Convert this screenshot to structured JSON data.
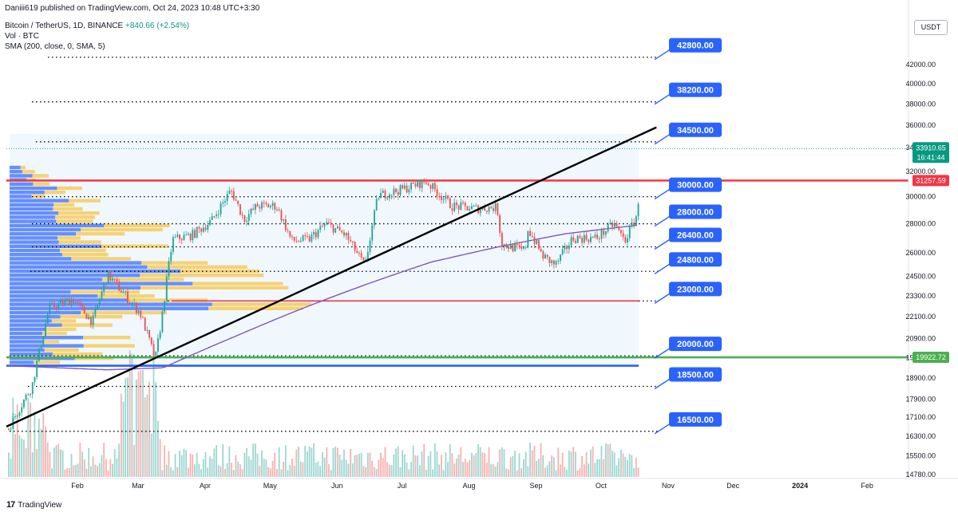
{
  "header": {
    "published": "Daniii619 published on TradingView.com, Oct 24, 2023 10:48 UTC+3:30",
    "symbol_line": "Bitcoin / TetherUS, 1D, BINANCE",
    "change": "+840.66 (+2.54%)",
    "volume_line": "Vol · BTC",
    "sma_line": "SMA (200, close, 0, SMA, 5)"
  },
  "currency": "USDT",
  "footer": {
    "brand": "TradingView",
    "logo_mark": "17"
  },
  "colors": {
    "up": "#26a69a",
    "down": "#ef5350",
    "sma": "#7e57c2",
    "label_blue": "#2962ff",
    "resistance_red": "#f23645",
    "support_green": "#4caf50",
    "trend_line": "#000000",
    "price_tag": "#089981"
  },
  "chart_data": {
    "type": "candlestick",
    "title": "Bitcoin / TetherUS, 1D, BINANCE",
    "x_ticks": [
      "Feb",
      "Mar",
      "Apr",
      "May",
      "Jun",
      "Jul",
      "Aug",
      "Sep",
      "Oct",
      "Nov",
      "Dec",
      "2024",
      "Feb"
    ],
    "y_ticks": [
      42000,
      40000,
      38000,
      36000,
      34000,
      32000,
      30000,
      28000,
      26000,
      24500,
      23300,
      22100,
      20900,
      19900,
      18900,
      17900,
      17100,
      16300,
      15500,
      14780
    ],
    "y_tick_labels": [
      "42000.00",
      "40000.00",
      "38000.00",
      "36000.00",
      "34000.00",
      "32000.00",
      "30000.00",
      "28000.00",
      "26000.00",
      "24500.00",
      "23300.00",
      "22100.00",
      "20900.00",
      "19900.00",
      "18900.00",
      "17900.00",
      "17100.00",
      "16300.00",
      "15500.00",
      "14780.00"
    ],
    "y_scale": "log",
    "last_price": {
      "value": "33910.65",
      "countdown": "16:41:44"
    },
    "price_tags": [
      {
        "value": "31257.59",
        "color": "#f23645"
      },
      {
        "value": "19922.72",
        "color": "#4caf50"
      }
    ],
    "level_labels": [
      {
        "value": 42800,
        "label": "42800.00"
      },
      {
        "value": 38200,
        "label": "38200.00"
      },
      {
        "value": 34500,
        "label": "34500.00"
      },
      {
        "value": 30000,
        "label": "30000.00"
      },
      {
        "value": 28000,
        "label": "28000.00"
      },
      {
        "value": 26400,
        "label": "26400.00"
      },
      {
        "value": 24800,
        "label": "24800.00"
      },
      {
        "value": 23000,
        "label": "23000.00"
      },
      {
        "value": 20000,
        "label": "20000.00"
      },
      {
        "value": 18500,
        "label": "18500.00"
      },
      {
        "value": 16500,
        "label": "16500.00"
      }
    ],
    "horizontal_lines": [
      {
        "value": 31257.59,
        "color": "#f23645",
        "style": "solid"
      },
      {
        "value": 23000,
        "color": "#f23645",
        "style": "solid"
      },
      {
        "value": 19922.72,
        "color": "#4caf50",
        "style": "solid"
      },
      {
        "value": 19500,
        "color": "#2962ff",
        "style": "solid"
      }
    ],
    "trend_line": {
      "from": {
        "date": "2023-01-01",
        "price": 16700
      },
      "to": {
        "date": "2023-10-27",
        "price": 35800
      }
    },
    "price_path": [
      {
        "date": "2023-01-01",
        "price": 16600
      },
      {
        "date": "2023-01-12",
        "price": 18500
      },
      {
        "date": "2023-01-20",
        "price": 22600
      },
      {
        "date": "2023-01-31",
        "price": 23100
      },
      {
        "date": "2023-02-09",
        "price": 21800
      },
      {
        "date": "2023-02-16",
        "price": 24600
      },
      {
        "date": "2023-02-25",
        "price": 23200
      },
      {
        "date": "2023-03-03",
        "price": 22300
      },
      {
        "date": "2023-03-10",
        "price": 19800
      },
      {
        "date": "2023-03-13",
        "price": 22000
      },
      {
        "date": "2023-03-18",
        "price": 26900
      },
      {
        "date": "2023-03-27",
        "price": 27200
      },
      {
        "date": "2023-04-05",
        "price": 28200
      },
      {
        "date": "2023-04-14",
        "price": 30500
      },
      {
        "date": "2023-04-20",
        "price": 28300
      },
      {
        "date": "2023-04-26",
        "price": 29300
      },
      {
        "date": "2023-05-05",
        "price": 29300
      },
      {
        "date": "2023-05-12",
        "price": 26800
      },
      {
        "date": "2023-05-20",
        "price": 26900
      },
      {
        "date": "2023-05-28",
        "price": 28000
      },
      {
        "date": "2023-06-06",
        "price": 27200
      },
      {
        "date": "2023-06-15",
        "price": 25100
      },
      {
        "date": "2023-06-21",
        "price": 30100
      },
      {
        "date": "2023-07-01",
        "price": 30500
      },
      {
        "date": "2023-07-13",
        "price": 31200
      },
      {
        "date": "2023-07-25",
        "price": 29300
      },
      {
        "date": "2023-08-05",
        "price": 29100
      },
      {
        "date": "2023-08-15",
        "price": 29200
      },
      {
        "date": "2023-08-17",
        "price": 26600
      },
      {
        "date": "2023-08-28",
        "price": 26100
      },
      {
        "date": "2023-08-29",
        "price": 27700
      },
      {
        "date": "2023-09-05",
        "price": 25800
      },
      {
        "date": "2023-09-11",
        "price": 25200
      },
      {
        "date": "2023-09-19",
        "price": 27000
      },
      {
        "date": "2023-09-30",
        "price": 27000
      },
      {
        "date": "2023-10-08",
        "price": 28000
      },
      {
        "date": "2023-10-13",
        "price": 26800
      },
      {
        "date": "2023-10-18",
        "price": 28400
      },
      {
        "date": "2023-10-20",
        "price": 29700
      },
      {
        "date": "2023-10-22",
        "price": 30000
      },
      {
        "date": "2023-10-23",
        "price": 33000
      },
      {
        "date": "2023-10-24",
        "price": 33910.65
      }
    ],
    "sma_200_path": [
      {
        "date": "2023-01-01",
        "price": 19500
      },
      {
        "date": "2023-02-15",
        "price": 19300
      },
      {
        "date": "2023-03-13",
        "price": 19400
      },
      {
        "date": "2023-04-15",
        "price": 21000
      },
      {
        "date": "2023-05-15",
        "price": 22500
      },
      {
        "date": "2023-06-15",
        "price": 24000
      },
      {
        "date": "2023-07-15",
        "price": 25400
      },
      {
        "date": "2023-08-15",
        "price": 26400
      },
      {
        "date": "2023-09-15",
        "price": 27300
      },
      {
        "date": "2023-10-24",
        "price": 28000
      }
    ],
    "volume_series": {
      "name": "Vol · BTC"
    },
    "volume_profile": {
      "range": [
        19500,
        34500
      ]
    }
  }
}
